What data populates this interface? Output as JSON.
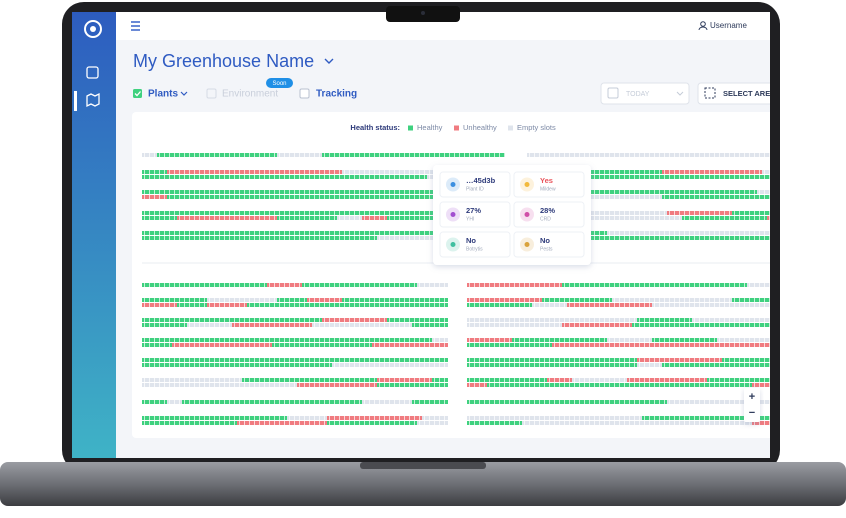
{
  "topbar": {
    "user": "Username"
  },
  "header": {
    "title": "My Greenhouse Name"
  },
  "tabs": {
    "plants": "Plants",
    "environment": "Environment",
    "soon": "Soon",
    "tracking": "Tracking",
    "date": "TODAY",
    "select_area": "SELECT AREA"
  },
  "legend": {
    "label": "Health status:",
    "healthy": "Healthy",
    "unhealthy": "Unhealthy",
    "empty": "Empty slots"
  },
  "tooltip": {
    "cards": [
      {
        "value": "…45d3b",
        "label": "Plant ID"
      },
      {
        "value": "Yes",
        "label": "Mildew"
      },
      {
        "value": "27%",
        "label": "YHI"
      },
      {
        "value": "28%",
        "label": "CRD"
      },
      {
        "value": "No",
        "label": "Botrytis"
      },
      {
        "value": "No",
        "label": "Pests"
      }
    ]
  },
  "zoom": {
    "in": "+",
    "out": "−"
  }
}
